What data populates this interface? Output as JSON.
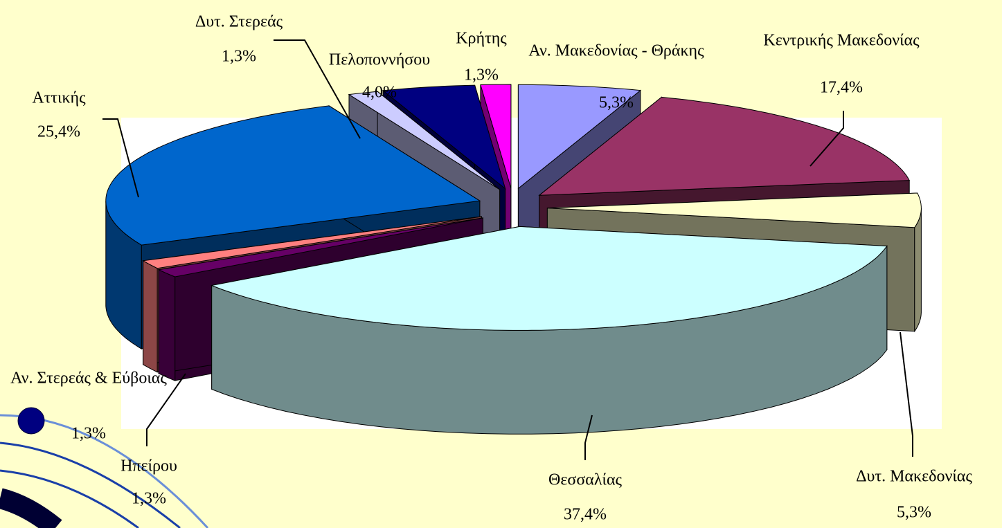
{
  "chart_data": {
    "type": "pie3d",
    "categories": [
      "Αν. Μακεδονίας - Θράκης",
      "Κεντρικής Μακεδονίας",
      "Δυτ. Μακεδονίας",
      "Θεσσαλίας",
      "Ηπείρου",
      "Αν. Στερεάς & Εύβοιας",
      "Αττικής",
      "Δυτ. Στερεάς",
      "Πελοποννήσου",
      "Κρήτης"
    ],
    "values": [
      5.3,
      17.4,
      5.3,
      37.4,
      1.3,
      1.3,
      25.4,
      1.3,
      4.0,
      1.3
    ],
    "value_labels": [
      "5,3%",
      "17,4%",
      "5,3%",
      "37,4%",
      "1,3%",
      "1,3%",
      "25,4%",
      "1,3%",
      "4,0%",
      "1,3%"
    ],
    "colors": [
      "#9999ff",
      "#993366",
      "#ffffcc",
      "#ccffff",
      "#660066",
      "#ff8080",
      "#0066cc",
      "#ccccff",
      "#000080",
      "#ff00ff"
    ]
  }
}
